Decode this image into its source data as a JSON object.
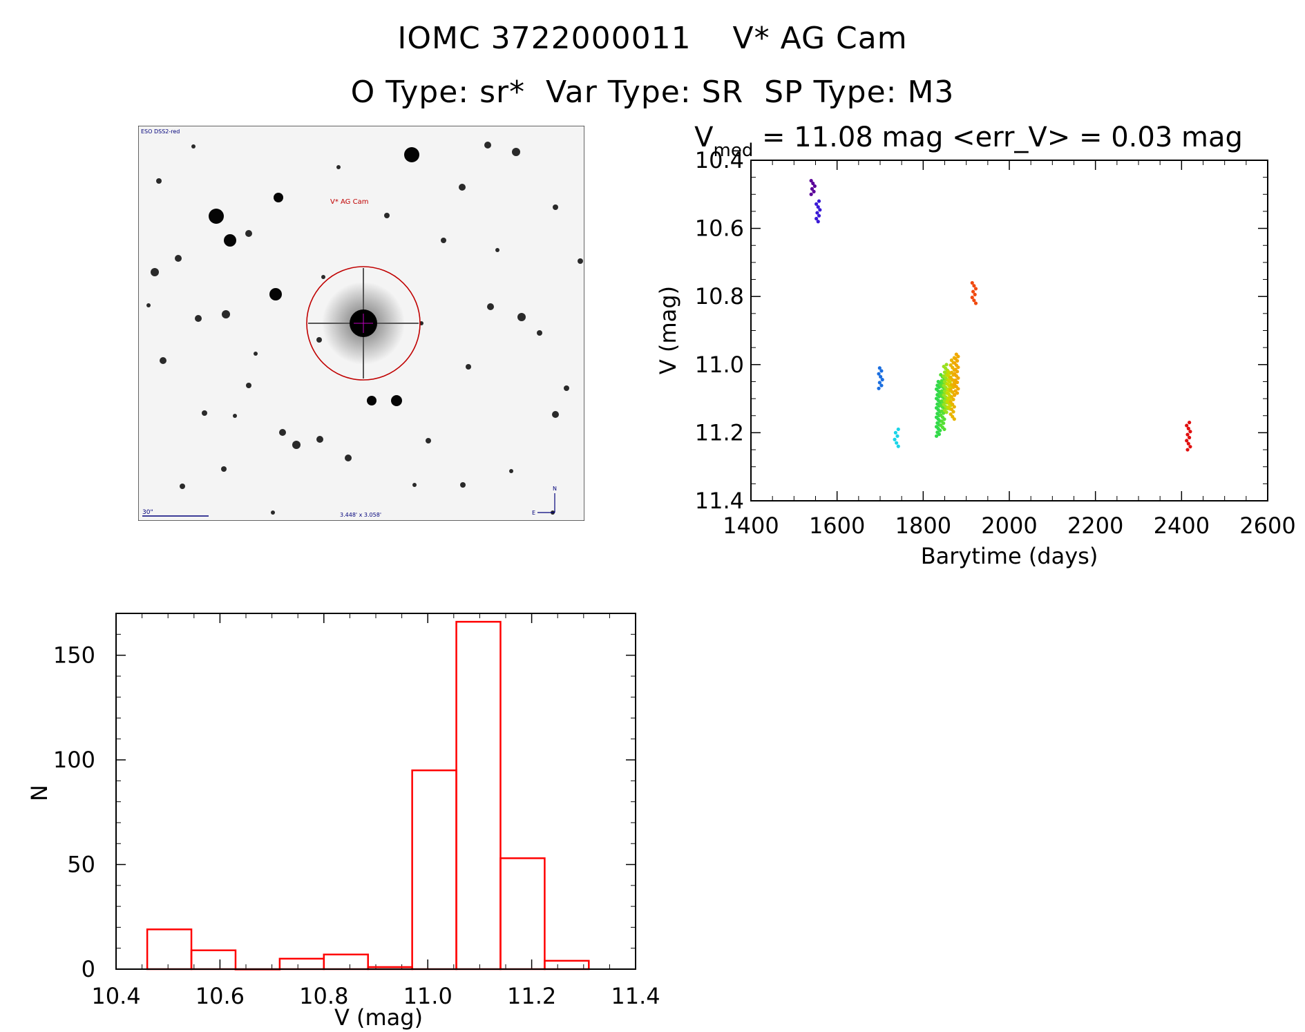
{
  "header": {
    "line1": "IOMC 3722000011    V* AG Cam",
    "line2": "O Type: sr*  Var Type: SR  SP Type: M3"
  },
  "image_panel": {
    "survey_label": "ESO DSS2-red",
    "target_label": "V* AG Cam",
    "scale_label": "30\"",
    "fov_label": "3.448' x 3.058'",
    "north_label": "N",
    "east_label": "E"
  },
  "chart_data": [
    {
      "type": "scatter",
      "title_prefix": "V",
      "title_subscript": "med",
      "title_rest": " = 11.08 mag <err_V> = 0.03 mag",
      "xlabel": "Barytime (days)",
      "ylabel": "V (mag)",
      "xlim": [
        1400,
        2600
      ],
      "ylim": [
        11.4,
        10.4
      ],
      "y_inverted": true,
      "xticks": [
        "1400",
        "1600",
        "1800",
        "2000",
        "2200",
        "2400",
        "2600"
      ],
      "yticks": [
        "10.4",
        "10.6",
        "10.8",
        "11.0",
        "11.2",
        "11.4"
      ],
      "groups": [
        {
          "x": 1544,
          "ymin": 10.46,
          "ymax": 10.5,
          "n": 6,
          "color": "#5b0099"
        },
        {
          "x": 1556,
          "ymin": 10.52,
          "ymax": 10.58,
          "n": 8,
          "color": "#3a1ad6"
        },
        {
          "x": 1701,
          "ymin": 11.01,
          "ymax": 11.07,
          "n": 8,
          "color": "#1a6ee0"
        },
        {
          "x": 1738,
          "ymin": 11.19,
          "ymax": 11.24,
          "n": 6,
          "color": "#19d4e8"
        },
        {
          "x": 1835,
          "ymin": 11.05,
          "ymax": 11.21,
          "n": 30,
          "color": "#33d94a"
        },
        {
          "x": 1845,
          "ymin": 11.03,
          "ymax": 11.19,
          "n": 28,
          "color": "#55e033"
        },
        {
          "x": 1852,
          "ymin": 11.0,
          "ymax": 11.14,
          "n": 26,
          "color": "#9ae020"
        },
        {
          "x": 1860,
          "ymin": 11.02,
          "ymax": 11.13,
          "n": 22,
          "color": "#c9d800"
        },
        {
          "x": 1868,
          "ymin": 10.98,
          "ymax": 11.16,
          "n": 26,
          "color": "#e8b400"
        },
        {
          "x": 1877,
          "ymin": 10.97,
          "ymax": 11.09,
          "n": 20,
          "color": "#f0a800"
        },
        {
          "x": 1918,
          "ymin": 10.76,
          "ymax": 10.82,
          "n": 8,
          "color": "#f04a10"
        },
        {
          "x": 2416,
          "ymin": 11.17,
          "ymax": 11.25,
          "n": 10,
          "color": "#e01010"
        }
      ]
    },
    {
      "type": "bar",
      "title": "",
      "xlabel": "V (mag)",
      "ylabel": "N",
      "xlim": [
        10.4,
        11.4
      ],
      "ylim": [
        0,
        170
      ],
      "xticks": [
        "10.4",
        "10.6",
        "10.8",
        "11.0",
        "11.2",
        "11.4"
      ],
      "yticks": [
        "0",
        "50",
        "100",
        "150"
      ],
      "bin_edges": [
        10.46,
        10.545,
        10.63,
        10.715,
        10.8,
        10.885,
        10.97,
        11.055,
        11.14,
        11.225,
        11.31
      ],
      "values": [
        19,
        9,
        0,
        5,
        7,
        1,
        95,
        166,
        53,
        4
      ],
      "color": "#ff0000"
    }
  ]
}
